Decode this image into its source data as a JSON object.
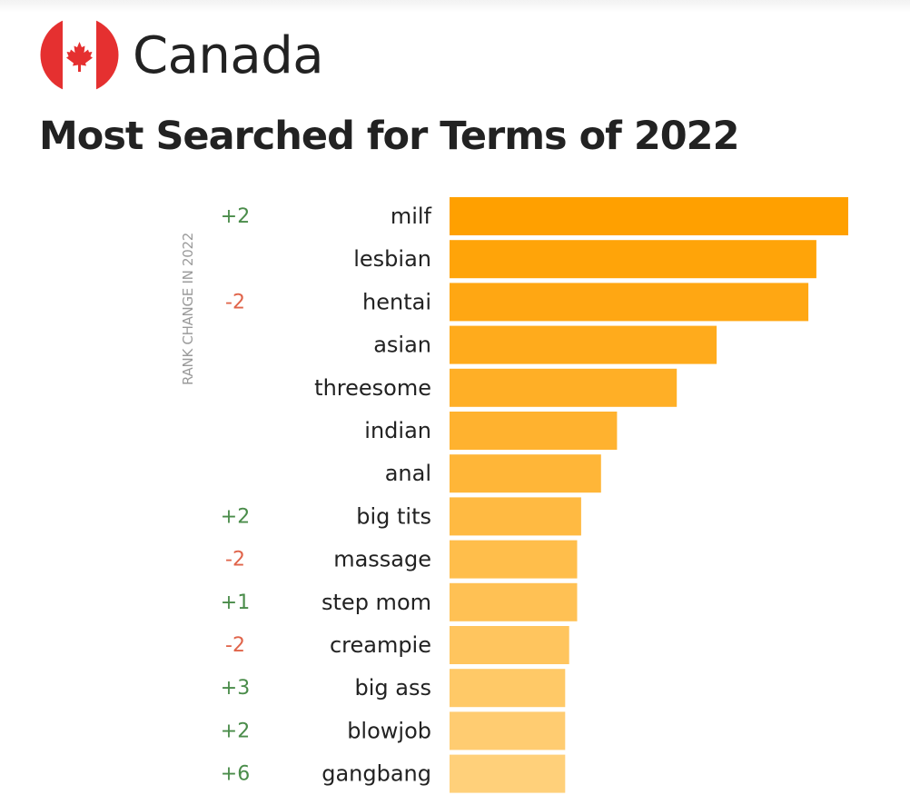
{
  "header": {
    "country": "Canada",
    "title": "Most Searched for Terms of 2022",
    "flag_icon": "canada-flag-icon"
  },
  "chart_data": {
    "type": "bar",
    "orientation": "horizontal",
    "title": "Most Searched for Terms of 2022",
    "side_axis_label": "RANK CHANGE IN 2022",
    "categories": [
      "milf",
      "lesbian",
      "hentai",
      "asian",
      "threesome",
      "indian",
      "anal",
      "big tits",
      "massage",
      "step mom",
      "creampie",
      "big ass",
      "blowjob",
      "gangbang"
    ],
    "values": [
      100,
      92,
      90,
      67,
      57,
      42,
      38,
      33,
      32,
      32,
      30,
      29,
      29,
      29
    ],
    "rank_change": [
      "+2",
      "",
      "-2",
      "",
      "",
      "",
      "",
      "+2",
      "-2",
      "+1",
      "-2",
      "+3",
      "+2",
      "+6"
    ],
    "xlim": [
      0,
      100
    ],
    "grid": false,
    "legend": "none"
  },
  "colors": {
    "bar_top": "#ffa000",
    "bar_bottom": "#ffd07a",
    "positive": "#4a8c4a",
    "negative": "#e0644a",
    "text": "#222222",
    "flag_red": "#e53030",
    "side_label": "#9a9a9a"
  }
}
